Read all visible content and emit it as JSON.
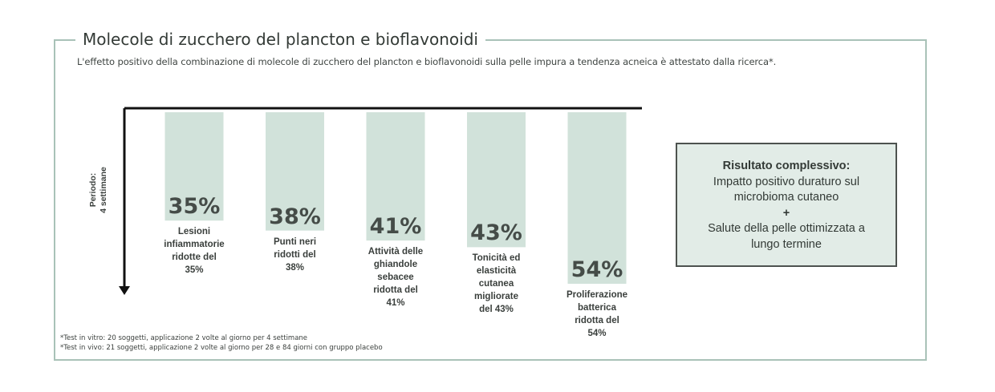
{
  "title": "Molecole di zucchero del plancton e bioflavonoidi",
  "subtitle": "L'effetto positivo della combinazione di molecole di zucchero del plancton e bioflavonoidi sulla pelle impura a tendenza acneica è attestato dalla ricerca*.",
  "colors": {
    "bar": "#d1e2da",
    "frame": "#a9c2b8",
    "axis": "#111111",
    "summary_bg": "#e2ece7"
  },
  "chart_data": {
    "type": "bar",
    "title": "",
    "ylabel_lines": [
      "Periodo:",
      "4 settimane"
    ],
    "ylim": [
      0,
      60
    ],
    "orientation": "vertical-downward",
    "grid": false,
    "categories": [
      [
        "Lesioni",
        "infiammatorie",
        "ridotte del",
        "35%"
      ],
      [
        "Punti neri",
        "ridotti del",
        "38%"
      ],
      [
        "Attività delle",
        "ghiandole",
        "sebacee",
        "ridotta del",
        "41%"
      ],
      [
        "Tonicità ed",
        "elasticità",
        "cutanea",
        "migliorate",
        "del 43%"
      ],
      [
        "Proliferazione",
        "batterica",
        "ridotta del",
        "54%"
      ]
    ],
    "values": [
      35,
      38,
      41,
      43,
      54
    ],
    "data_labels": [
      "35%",
      "38%",
      "41%",
      "43%",
      "54%"
    ]
  },
  "summary": {
    "title": "Risultato complessivo:",
    "line1": "Impatto positivo duraturo sul",
    "line2": "microbioma cutaneo",
    "plus": "+",
    "line3": "Salute della pelle ottimizzata a",
    "line4": "lungo termine"
  },
  "footnotes": [
    "*Test in vitro: 20 soggetti, applicazione 2 volte al giorno per 4 settimane",
    "*Test in vivo: 21 soggetti, applicazione 2 volte al giorno per 28 e 84 giorni con gruppo placebo"
  ]
}
